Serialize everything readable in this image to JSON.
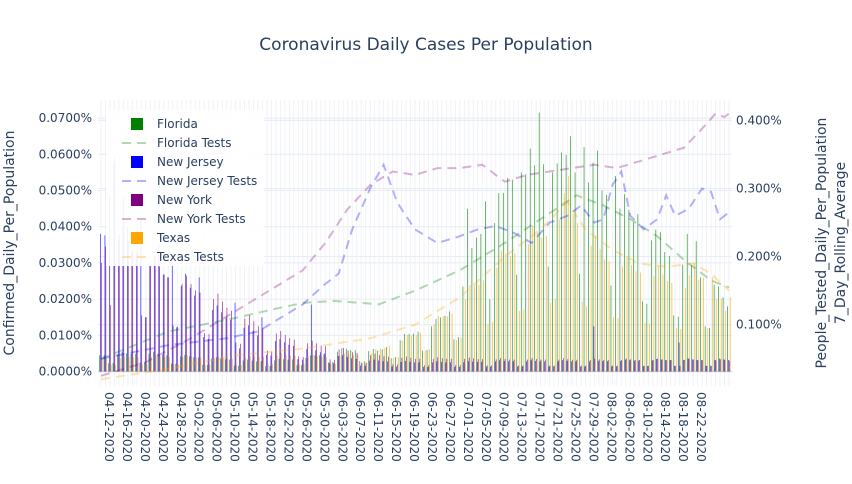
{
  "chart_data": {
    "type": "bar",
    "title": "Coronavirus Daily Cases Per Population",
    "ylabel_left": "Confirmed_Daily_Per_Population",
    "ylabel_right": [
      "People_Tested_Daily_Per_Population",
      "7_Day_Rolling_Average"
    ],
    "xlabel": "",
    "start_date": "2020-04-12",
    "num_days": 141,
    "y_left_lim": [
      -4e-05,
      0.00075
    ],
    "y_right_lim": [
      0.0001,
      0.0043
    ],
    "y_left_ticks": [
      0.0,
      0.0001,
      0.0002,
      0.0003,
      0.0004,
      0.0005,
      0.0006,
      0.0007
    ],
    "y_left_tick_labels": [
      "0.0000%",
      "0.0100%",
      "0.0200%",
      "0.0300%",
      "0.0400%",
      "0.0500%",
      "0.0600%",
      "0.0700%"
    ],
    "y_right_ticks": [
      0.001,
      0.002,
      0.003,
      0.004
    ],
    "y_right_tick_labels": [
      "0.100%",
      "0.200%",
      "0.300%",
      "0.400%"
    ],
    "x_tick_labels": [
      "04-12-2020",
      "04-16-2020",
      "04-20-2020",
      "04-24-2020",
      "04-28-2020",
      "05-02-2020",
      "05-06-2020",
      "05-10-2020",
      "05-14-2020",
      "05-18-2020",
      "05-22-2020",
      "05-26-2020",
      "05-30-2020",
      "06-03-2020",
      "06-07-2020",
      "06-11-2020",
      "06-15-2020",
      "06-19-2020",
      "06-23-2020",
      "06-27-2020",
      "07-01-2020",
      "07-05-2020",
      "07-09-2020",
      "07-13-2020",
      "07-17-2020",
      "07-21-2020",
      "07-25-2020",
      "07-29-2020",
      "08-02-2020",
      "08-06-2020",
      "08-10-2020",
      "08-14-2020",
      "08-18-2020",
      "08-22-2020"
    ],
    "legend_position": "top-left",
    "grid": true,
    "series": [
      {
        "name": "Florida",
        "kind": "bar",
        "color": "#008000",
        "keys": [
          [
            0,
            4.5e-05
          ],
          [
            10,
            5e-05
          ],
          [
            20,
            4e-05
          ],
          [
            35,
            2.8e-05
          ],
          [
            45,
            3.5e-05
          ],
          [
            55,
            6e-05
          ],
          [
            62,
            5.5e-05
          ],
          [
            70,
            0.000105
          ],
          [
            75,
            0.00013
          ],
          [
            80,
            0.00019
          ],
          [
            84,
            0.00037
          ],
          [
            88,
            0.00041
          ],
          [
            92,
            0.00053
          ],
          [
            96,
            0.00055
          ],
          [
            100,
            0.00058
          ],
          [
            104,
            0.00057
          ],
          [
            108,
            0.00053
          ],
          [
            112,
            0.0005
          ],
          [
            116,
            0.00045
          ],
          [
            120,
            0.0004
          ],
          [
            124,
            0.00035
          ],
          [
            128,
            0.00031
          ],
          [
            132,
            0.00028
          ],
          [
            136,
            0.00024
          ],
          [
            140,
            0.00018
          ]
        ],
        "spikes": [
          [
            82,
            0.00045
          ],
          [
            86,
            0.00047
          ],
          [
            91,
            0.000535
          ],
          [
            94,
            0.00055
          ],
          [
            97,
            0.00057
          ],
          [
            98,
            0.000715
          ],
          [
            101,
            0.00055
          ],
          [
            103,
            0.000605
          ],
          [
            105,
            0.00065
          ],
          [
            108,
            0.00062
          ],
          [
            111,
            0.00061
          ],
          [
            115,
            0.00054
          ],
          [
            120,
            0.000435
          ],
          [
            125,
            0.000385
          ],
          [
            131,
            0.00038
          ],
          [
            133,
            0.00036
          ],
          [
            137,
            0.00024
          ]
        ]
      },
      {
        "name": "Florida Tests",
        "kind": "line",
        "color": "#008000",
        "keys": [
          [
            0,
            0.0005
          ],
          [
            15,
            0.0009
          ],
          [
            30,
            0.0011
          ],
          [
            40,
            0.00125
          ],
          [
            45,
            0.00132
          ],
          [
            52,
            0.00135
          ],
          [
            58,
            0.00132
          ],
          [
            62,
            0.0013
          ],
          [
            70,
            0.0015
          ],
          [
            80,
            0.0018
          ],
          [
            90,
            0.0022
          ],
          [
            98,
            0.00255
          ],
          [
            106,
            0.0029
          ],
          [
            112,
            0.00275
          ],
          [
            118,
            0.00255
          ],
          [
            124,
            0.0023
          ],
          [
            130,
            0.00195
          ],
          [
            136,
            0.00165
          ],
          [
            140,
            0.00155
          ]
        ]
      },
      {
        "name": "New Jersey",
        "kind": "bar",
        "color": "#0000ff",
        "keys": [
          [
            0,
            0.00038
          ],
          [
            5,
            0.00036
          ],
          [
            10,
            0.0003
          ],
          [
            15,
            0.00026
          ],
          [
            20,
            0.00022
          ],
          [
            25,
            0.00017
          ],
          [
            30,
            0.000135
          ],
          [
            35,
            0.0001
          ],
          [
            40,
            8e-05
          ],
          [
            45,
            6.5e-05
          ],
          [
            50,
            5e-05
          ],
          [
            55,
            3.8e-05
          ],
          [
            60,
            3e-05
          ],
          [
            70,
            2.5e-05
          ],
          [
            80,
            2.5e-05
          ],
          [
            90,
            2.8e-05
          ],
          [
            100,
            2.8e-05
          ],
          [
            110,
            2.8e-05
          ],
          [
            120,
            3e-05
          ],
          [
            130,
            3.2e-05
          ],
          [
            140,
            3.2e-05
          ]
        ],
        "spikes": [
          [
            2,
            0.00048
          ],
          [
            3,
            0.00058
          ],
          [
            6,
            0.0004
          ],
          [
            9,
            0.00042
          ],
          [
            13,
            0.00035
          ],
          [
            16,
            0.0003
          ],
          [
            19,
            0.00027
          ],
          [
            22,
            0.00026
          ],
          [
            30,
            0.00019
          ],
          [
            36,
            0.00015
          ],
          [
            47,
            0.000185
          ],
          [
            110,
            0.000125
          ],
          [
            129,
            8e-05
          ]
        ]
      },
      {
        "name": "New Jersey Tests",
        "kind": "line",
        "color": "#0000ff",
        "keys": [
          [
            0,
            0.0005
          ],
          [
            15,
            0.0007
          ],
          [
            28,
            0.0008
          ],
          [
            35,
            0.0009
          ],
          [
            45,
            0.0013
          ],
          [
            50,
            0.0016
          ],
          [
            53,
            0.00175
          ],
          [
            56,
            0.0024
          ],
          [
            60,
            0.003
          ],
          [
            63,
            0.00335
          ],
          [
            66,
            0.0028
          ],
          [
            70,
            0.0024
          ],
          [
            75,
            0.0022
          ],
          [
            80,
            0.0023
          ],
          [
            84,
            0.0024
          ],
          [
            88,
            0.00245
          ],
          [
            92,
            0.00235
          ],
          [
            96,
            0.0022
          ],
          [
            100,
            0.0025
          ],
          [
            104,
            0.0026
          ],
          [
            107,
            0.00275
          ],
          [
            110,
            0.0025
          ],
          [
            112,
            0.00255
          ],
          [
            114,
            0.00305
          ],
          [
            116,
            0.00325
          ],
          [
            118,
            0.0026
          ],
          [
            121,
            0.0024
          ],
          [
            124,
            0.00255
          ],
          [
            126,
            0.0029
          ],
          [
            128,
            0.0026
          ],
          [
            131,
            0.0027
          ],
          [
            134,
            0.003
          ],
          [
            136,
            0.00295
          ],
          [
            138,
            0.00255
          ],
          [
            140,
            0.00265
          ]
        ]
      },
      {
        "name": "New York",
        "kind": "bar",
        "color": "#800080",
        "keys": [
          [
            0,
            0.0003
          ],
          [
            3,
            0.0004
          ],
          [
            6,
            0.00034
          ],
          [
            10,
            0.0003
          ],
          [
            15,
            0.00026
          ],
          [
            20,
            0.00023
          ],
          [
            25,
            0.0002
          ],
          [
            30,
            0.00016
          ],
          [
            35,
            0.000125
          ],
          [
            40,
            0.0001
          ],
          [
            45,
            8e-05
          ],
          [
            50,
            7e-05
          ],
          [
            55,
            5.5e-05
          ],
          [
            60,
            4.5e-05
          ],
          [
            70,
            3.5e-05
          ],
          [
            80,
            3.5e-05
          ],
          [
            90,
            3.3e-05
          ],
          [
            100,
            3.3e-05
          ],
          [
            110,
            3.2e-05
          ],
          [
            120,
            3.2e-05
          ],
          [
            130,
            3.2e-05
          ],
          [
            140,
            3e-05
          ]
        ],
        "spikes": [
          [
            1,
            0.000345
          ],
          [
            3,
            0.00059
          ],
          [
            5,
            0.00048
          ],
          [
            8,
            0.0004
          ]
        ]
      },
      {
        "name": "New York Tests",
        "kind": "line",
        "color": "#800080",
        "keys": [
          [
            0,
            0.00025
          ],
          [
            10,
            0.00045
          ],
          [
            20,
            0.0008
          ],
          [
            30,
            0.0012
          ],
          [
            40,
            0.0016
          ],
          [
            45,
            0.0018
          ],
          [
            50,
            0.0022
          ],
          [
            55,
            0.0027
          ],
          [
            60,
            0.00305
          ],
          [
            65,
            0.00325
          ],
          [
            70,
            0.0032
          ],
          [
            75,
            0.0033
          ],
          [
            80,
            0.0033
          ],
          [
            85,
            0.00335
          ],
          [
            90,
            0.0031
          ],
          [
            95,
            0.0032
          ],
          [
            100,
            0.00325
          ],
          [
            105,
            0.0033
          ],
          [
            110,
            0.00335
          ],
          [
            115,
            0.0033
          ],
          [
            120,
            0.0034
          ],
          [
            125,
            0.0035
          ],
          [
            130,
            0.0036
          ],
          [
            135,
            0.00395
          ],
          [
            137,
            0.0041
          ],
          [
            139,
            0.00405
          ],
          [
            140,
            0.0041
          ]
        ]
      },
      {
        "name": "Texas",
        "kind": "bar",
        "color": "#ffa500",
        "keys": [
          [
            0,
            3.5e-05
          ],
          [
            10,
            4e-05
          ],
          [
            20,
            4e-05
          ],
          [
            30,
            3.5e-05
          ],
          [
            40,
            4.5e-05
          ],
          [
            50,
            4e-05
          ],
          [
            60,
            5e-05
          ],
          [
            70,
            0.0001
          ],
          [
            78,
            0.00016
          ],
          [
            84,
            0.00024
          ],
          [
            90,
            0.00031
          ],
          [
            96,
            0.00036
          ],
          [
            100,
            0.00038
          ],
          [
            104,
            0.00046
          ],
          [
            108,
            0.00036
          ],
          [
            112,
            0.00031
          ],
          [
            118,
            0.00028
          ],
          [
            124,
            0.00026
          ],
          [
            130,
            0.00023
          ],
          [
            134,
            0.00026
          ],
          [
            140,
            0.00014
          ]
        ],
        "spikes": [
          [
            104,
            0.00054
          ],
          [
            132,
            0.0003
          ],
          [
            136,
            0.00026
          ],
          [
            140,
            0.000205
          ]
        ]
      },
      {
        "name": "Texas Tests",
        "kind": "line",
        "color": "#ffa500",
        "keys": [
          [
            0,
            0.0002
          ],
          [
            15,
            0.00035
          ],
          [
            30,
            0.00055
          ],
          [
            45,
            0.00065
          ],
          [
            60,
            0.0008
          ],
          [
            70,
            0.001
          ],
          [
            80,
            0.0014
          ],
          [
            90,
            0.002
          ],
          [
            98,
            0.0024
          ],
          [
            104,
            0.0028
          ],
          [
            108,
            0.0024
          ],
          [
            114,
            0.0021
          ],
          [
            120,
            0.0019
          ],
          [
            126,
            0.00185
          ],
          [
            132,
            0.0019
          ],
          [
            136,
            0.00175
          ],
          [
            140,
            0.0015
          ]
        ]
      }
    ]
  }
}
